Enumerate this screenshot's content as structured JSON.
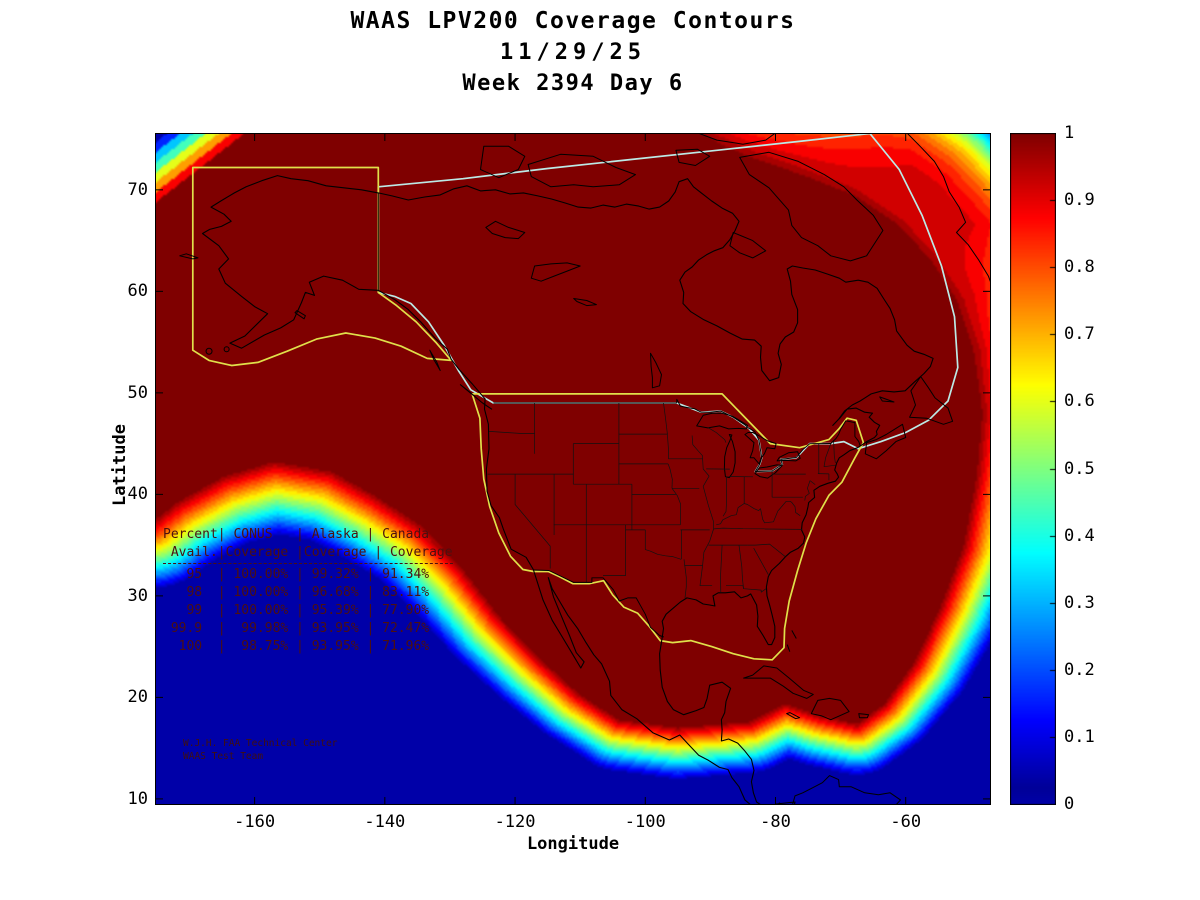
{
  "title": {
    "line1": "WAAS LPV200 Coverage Contours",
    "line2": "11/29/25",
    "line3": "Week 2394 Day 6"
  },
  "axes": {
    "xlabel": "Longitude",
    "ylabel": "Latitude",
    "x_ticks": [
      -160,
      -140,
      -120,
      -100,
      -80,
      -60
    ],
    "y_ticks": [
      70,
      60,
      50,
      40,
      30,
      20,
      10
    ],
    "x_range": [
      -175.3,
      -46.9
    ],
    "y_range": [
      9.4,
      75.6
    ]
  },
  "colorbar": {
    "min": 0,
    "max": 1,
    "colormap": "jet",
    "tick_labels": [
      "1",
      "0.9",
      "0.8",
      "0.7",
      "0.6",
      "0.5",
      "0.4",
      "0.3",
      "0.2",
      "0.1",
      "0"
    ]
  },
  "coverage_table": {
    "headers": [
      "Percent Avail.",
      "CONUS Coverage",
      "Alaska Coverage",
      "Canada Coverage"
    ],
    "rows": [
      [
        "95",
        "100.00%",
        "99.32%",
        "91.34%"
      ],
      [
        "98",
        "100.00%",
        "96.68%",
        "83.11%"
      ],
      [
        "99",
        "100.00%",
        "95.39%",
        "77.90%"
      ],
      [
        "99.9",
        "99.98%",
        "93.95%",
        "72.47%"
      ],
      [
        "100",
        "98.75%",
        "93.95%",
        "71.96%"
      ]
    ]
  },
  "annotations": {
    "org": "W.J.H. FAA Technical Center",
    "team": "WAAS Test Team"
  },
  "map_colors": {
    "conus_alaska_outline": "#e0e04a",
    "canada_outline": "#bceae6",
    "coastline": "#000000",
    "full_coverage": "#7f0000",
    "ocean_background": "#0000a6"
  },
  "chart_data": {
    "type": "heatmap",
    "subtype": "filled_contour_geographic_map",
    "title": "WAAS LPV200 Coverage Contours",
    "date": "11/29/25",
    "gps_week": "Week 2394 Day 6",
    "xlabel": "Longitude",
    "ylabel": "Latitude",
    "xlim": [
      -175.3,
      -46.9
    ],
    "ylim": [
      9.4,
      75.6
    ],
    "x_ticks": [
      -160,
      -140,
      -120,
      -100,
      -80,
      -60
    ],
    "y_ticks": [
      10,
      20,
      30,
      40,
      50,
      60,
      70
    ],
    "value_name": "LPV200 availability fraction",
    "value_range": [
      0,
      1
    ],
    "colormap": "jet",
    "colorbar_ticks": [
      0,
      0.1,
      0.2,
      0.3,
      0.4,
      0.5,
      0.6,
      0.7,
      0.8,
      0.9,
      1
    ],
    "legend_position": "right",
    "grid": false,
    "field_summary": "Value 1.0 (dark red) plateau covers Alaska, Canada, CONUS, Mexico and Central America; coverage falls through rainbow contour bands to 0 (dark blue) over the southwest Pacific corner, south of about 15N, east of about -52 longitude, and in the northeast corner near Greenland where a broad 0.8-0.9 orange shelf extends.",
    "overlays": [
      "North America coastline (black)",
      "US state borders (black)",
      "US-Canada and US-Mexico national borders (black)",
      "CONUS WAAS service volume outline (yellow)",
      "Alaska WAAS service volume outline (yellow)",
      "Canada service volume outline (pale cyan)"
    ],
    "availability_table": {
      "columns": [
        "Percent Avail.",
        "CONUS Coverage",
        "Alaska Coverage",
        "Canada Coverage"
      ],
      "rows": [
        [
          "95",
          "100.00%",
          "99.32%",
          "91.34%"
        ],
        [
          "98",
          "100.00%",
          "96.68%",
          "83.11%"
        ],
        [
          "99",
          "100.00%",
          "95.39%",
          "77.90%"
        ],
        [
          "99.9",
          "99.98%",
          "93.95%",
          "72.47%"
        ],
        [
          "100",
          "98.75%",
          "93.95%",
          "71.96%"
        ]
      ]
    }
  }
}
